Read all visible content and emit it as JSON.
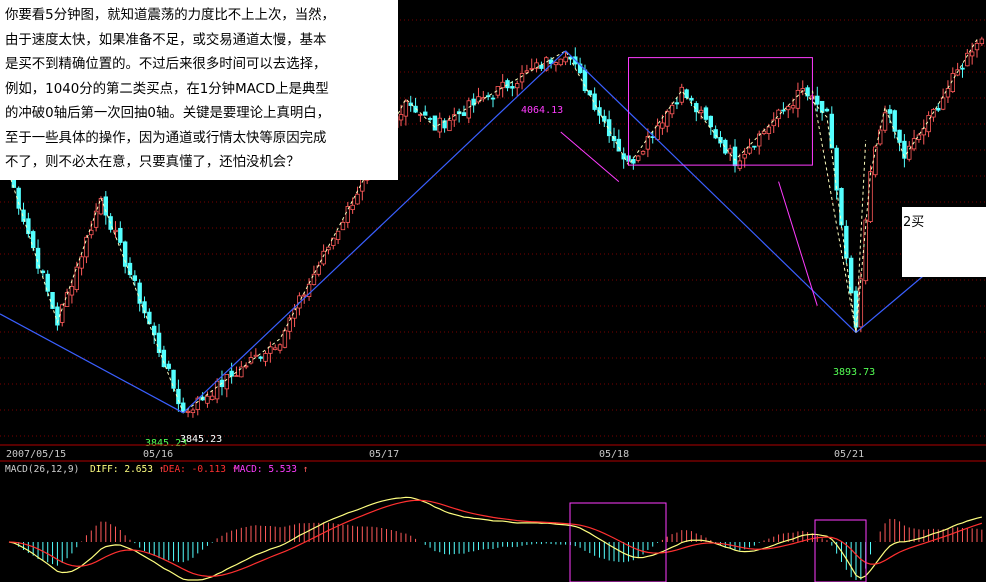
{
  "annotation": {
    "lines": [
      "你要看5分钟图，就知道震荡的力度比不上上次，当然，",
      "由于速度太快，如果准备不足，或交易通道太慢，基本",
      "是买不到精确位置的。不过后来很多时间可以去选择，",
      "例如，1040分的第二类买点，在1分钟MACD上是典型",
      "的冲破0轴后第一次回抽0轴。关键是要理论上真明白，",
      "至于一些具体的操作，因为通道或行情太快等原因完成",
      "不了，则不必太在意，只要真懂了，还怕没机会？"
    ]
  },
  "buy_label": "2买",
  "price_labels": {
    "high": "4064.13",
    "low1": "3845.23",
    "low1_green": "3845.23",
    "low2": "3893.73"
  },
  "dates": [
    "2007/05/15",
    "05/16",
    "05/17",
    "05/18",
    "05/21"
  ],
  "macd_header": {
    "name": "MACD(26,12,9)",
    "diff_label": "DIFF:",
    "diff_value": "2.653",
    "dea_label": "DEA:",
    "dea_value": "-0.113",
    "macd_label": "MACD:",
    "macd_value": "5.533",
    "arrow": "↑"
  },
  "colors": {
    "up": "#ff5a5a",
    "down": "#54ffff",
    "trend": "#3a5fff",
    "box": "#ff3cff",
    "diff": "#ffff80",
    "dea": "#ff3030",
    "grid": "#7a0000",
    "axis": "#b00000"
  },
  "chart_data": {
    "type": "candlestick",
    "price_axis_range": [
      3830,
      4090
    ],
    "pivots": [
      {
        "x": 0,
        "price": 3990
      },
      {
        "x": 10,
        "price": 3900
      },
      {
        "x": 19,
        "price": 3975
      },
      {
        "x": 36,
        "price": 3845.23
      },
      {
        "x": 56,
        "price": 3890
      },
      {
        "x": 82,
        "price": 4035
      },
      {
        "x": 88,
        "price": 4018
      },
      {
        "x": 115,
        "price": 4064.13
      },
      {
        "x": 128,
        "price": 3995
      },
      {
        "x": 139,
        "price": 4040
      },
      {
        "x": 150,
        "price": 3998
      },
      {
        "x": 164,
        "price": 4040
      },
      {
        "x": 169,
        "price": 4024
      },
      {
        "x": 175,
        "price": 3893.73
      },
      {
        "x": 178,
        "price": 3990
      },
      {
        "x": 181,
        "price": 4030
      },
      {
        "x": 185,
        "price": 4000
      },
      {
        "x": 190,
        "price": 4022
      },
      {
        "x": 200,
        "price": 4071
      }
    ],
    "macd_series": [
      "DIFF",
      "DEA",
      "MACD"
    ]
  }
}
